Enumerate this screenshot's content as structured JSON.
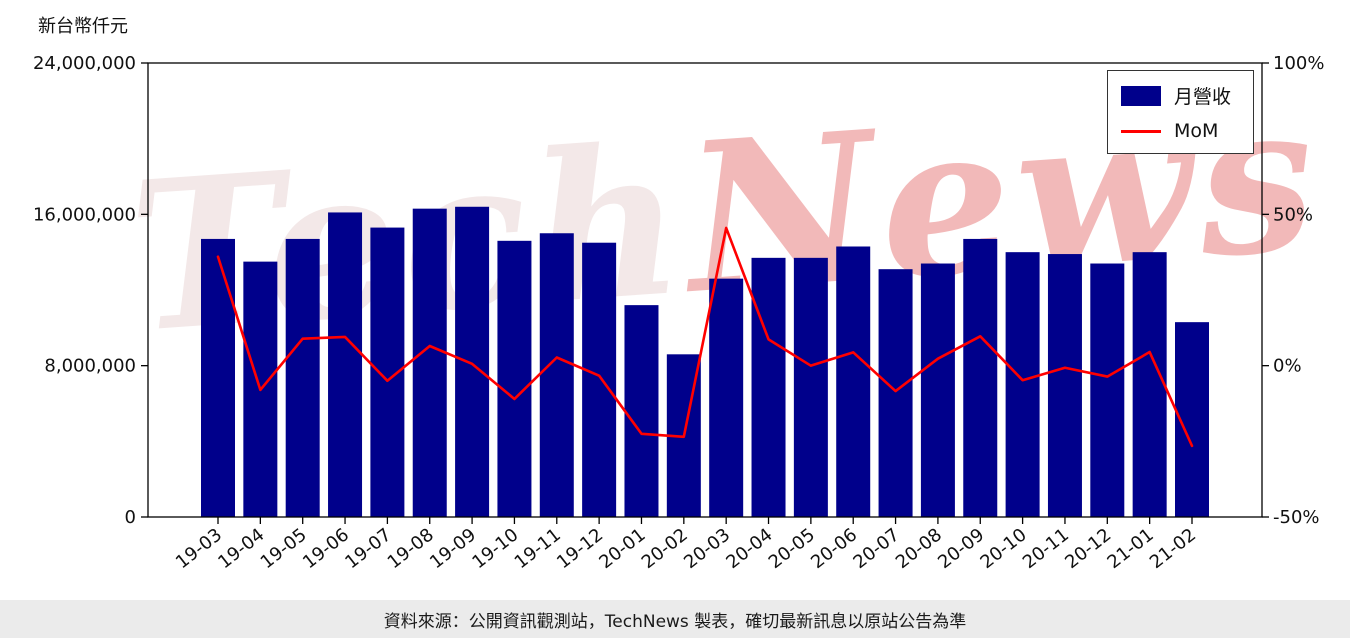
{
  "page": {
    "y_axis_title": "新台幣仟元",
    "source_note": "資料來源：公開資訊觀測站，TechNews 製表，確切最新訊息以原站公告為準",
    "watermark_part1": "Tech",
    "watermark_part2": "News"
  },
  "legend": {
    "bar_label": "月營收",
    "line_label": "MoM"
  },
  "colors": {
    "bar": "#00008b",
    "line": "#ff0000"
  },
  "chart_data": {
    "type": "bar",
    "title": "",
    "xlabel": "",
    "ylabel": "新台幣仟元",
    "grid": false,
    "legend_position": "top-right",
    "categories": [
      "19-03",
      "19-04",
      "19-05",
      "19-06",
      "19-07",
      "19-08",
      "19-09",
      "19-10",
      "19-11",
      "19-12",
      "20-01",
      "20-02",
      "20-03",
      "20-04",
      "20-05",
      "20-06",
      "20-07",
      "20-08",
      "20-09",
      "20-10",
      "20-11",
      "20-12",
      "21-01",
      "21-02"
    ],
    "series": [
      {
        "name": "月營收",
        "type": "bar",
        "axis": "left",
        "values": [
          14700000,
          13500000,
          14700000,
          16100000,
          15300000,
          16300000,
          16400000,
          14600000,
          15000000,
          14500000,
          11200000,
          8600000,
          12600000,
          13700000,
          13700000,
          14300000,
          13100000,
          13400000,
          14700000,
          14000000,
          13900000,
          13400000,
          14000000,
          10300000
        ]
      },
      {
        "name": "MoM",
        "type": "line",
        "axis": "right",
        "values": [
          36,
          -8,
          8.9,
          9.5,
          -5,
          6.5,
          0.6,
          -11,
          2.7,
          -3.3,
          -22.5,
          -23.5,
          45.5,
          8.7,
          0,
          4.4,
          -8.4,
          2.3,
          9.7,
          -4.8,
          -0.7,
          -3.6,
          4.5,
          -26.5
        ]
      }
    ],
    "left_axis": {
      "title": "新台幣仟元",
      "range": [
        0,
        24000000
      ],
      "tick_values": [
        0,
        8000000,
        16000000,
        24000000
      ],
      "tick_labels": [
        "0",
        "8,000,000",
        "16,000,000",
        "24,000,000"
      ]
    },
    "right_axis": {
      "range": [
        -50,
        100
      ],
      "tick_values": [
        -50,
        0,
        50,
        100
      ],
      "tick_labels": [
        "-50%",
        "0%",
        "50%",
        "100%"
      ]
    }
  }
}
